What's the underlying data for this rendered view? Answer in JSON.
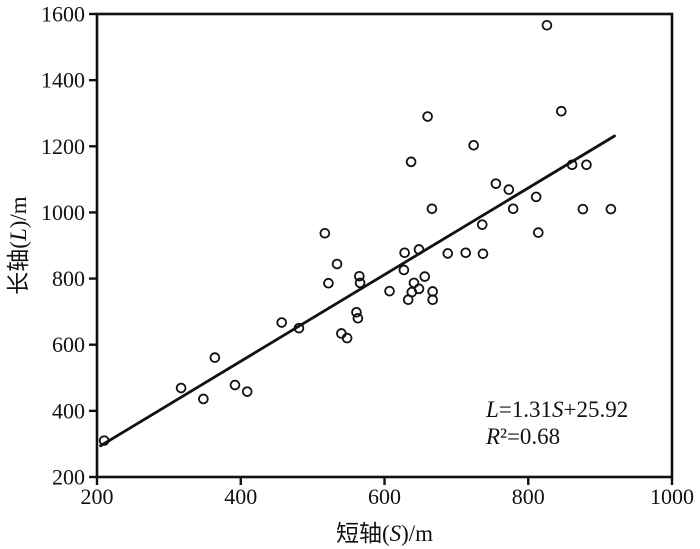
{
  "chart_data": {
    "type": "scatter",
    "title": "",
    "xlabel": "短轴(S)/m",
    "ylabel": "长轴(L)/m",
    "xlim": [
      200,
      1000
    ],
    "ylim": [
      200,
      1600
    ],
    "xticks": [
      200,
      400,
      600,
      800,
      1000
    ],
    "yticks": [
      200,
      400,
      600,
      800,
      1000,
      1200,
      1400,
      1600
    ],
    "grid": false,
    "legend": "none",
    "marker": "open-circle",
    "colors": {
      "axis": "#111111",
      "points": "#111111",
      "fit_line": "#111111",
      "background": "#ffffff"
    },
    "points": [
      [
        210,
        310
      ],
      [
        317,
        469
      ],
      [
        348,
        436
      ],
      [
        364,
        561
      ],
      [
        392,
        478
      ],
      [
        409,
        458
      ],
      [
        457,
        667
      ],
      [
        481,
        650
      ],
      [
        517,
        937
      ],
      [
        522,
        786
      ],
      [
        534,
        844
      ],
      [
        540,
        634
      ],
      [
        548,
        620
      ],
      [
        561,
        698
      ],
      [
        563,
        680
      ],
      [
        565,
        807
      ],
      [
        566,
        787
      ],
      [
        607,
        762
      ],
      [
        627,
        826
      ],
      [
        628,
        878
      ],
      [
        633,
        736
      ],
      [
        637,
        1153
      ],
      [
        638,
        759
      ],
      [
        641,
        787
      ],
      [
        648,
        888
      ],
      [
        648,
        769
      ],
      [
        656,
        806
      ],
      [
        660,
        1290
      ],
      [
        666,
        1011
      ],
      [
        667,
        761
      ],
      [
        667,
        736
      ],
      [
        688,
        876
      ],
      [
        713,
        878
      ],
      [
        724,
        1203
      ],
      [
        736,
        963
      ],
      [
        737,
        875
      ],
      [
        755,
        1087
      ],
      [
        773,
        1069
      ],
      [
        779,
        1011
      ],
      [
        811,
        1047
      ],
      [
        814,
        939
      ],
      [
        826,
        1566
      ],
      [
        846,
        1306
      ],
      [
        861,
        1144
      ],
      [
        876,
        1010
      ],
      [
        881,
        1144
      ],
      [
        915,
        1010
      ]
    ],
    "fit_line": {
      "slope": 1.31,
      "intercept": 25.92,
      "x_start": 205,
      "x_end": 920
    },
    "annotation": {
      "line1": "L=1.31S+25.92",
      "line2": "R²=0.68"
    }
  }
}
